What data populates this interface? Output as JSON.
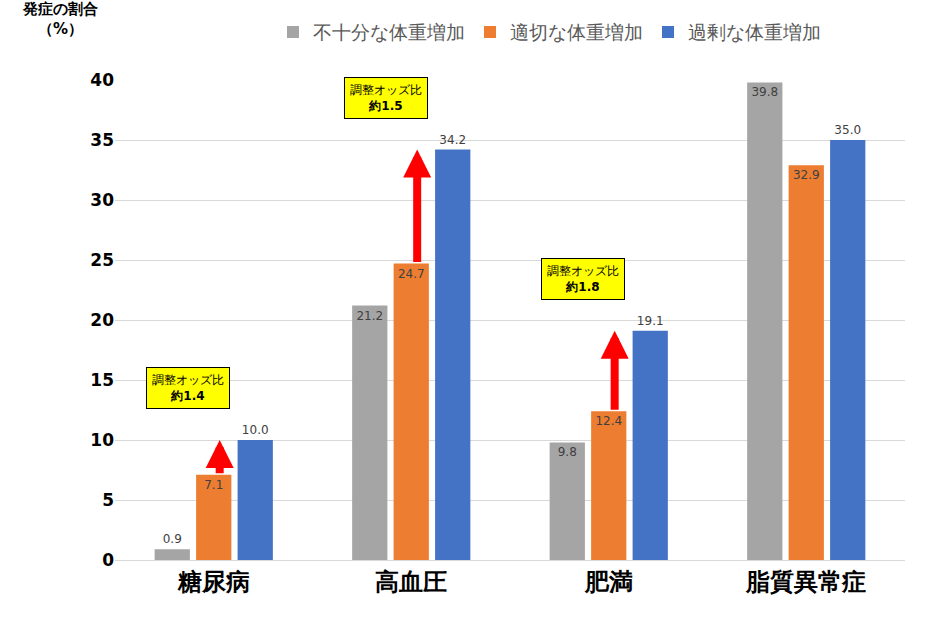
{
  "chart_data": {
    "type": "bar",
    "ylabel": "発症の割合\n（%）",
    "categories": [
      "糖尿病",
      "高血圧",
      "肥満",
      "脂質異常症"
    ],
    "series": [
      {
        "name": "不十分な体重増加",
        "color": "#a5a5a5",
        "values": [
          0.9,
          21.2,
          9.8,
          39.8
        ],
        "value_labels": [
          "0.9",
          "21.2",
          "9.8",
          "39.8"
        ]
      },
      {
        "name": "適切な体重増加",
        "color": "#ed7d31",
        "values": [
          7.1,
          24.7,
          12.4,
          32.9
        ],
        "value_labels": [
          "7.1",
          "24.7",
          "12.4",
          "32.9"
        ]
      },
      {
        "name": "過剰な体重増加",
        "color": "#4472c4",
        "values": [
          10.0,
          34.2,
          19.1,
          35.0
        ],
        "value_labels": [
          "10.0",
          "34.2",
          "19.1",
          "35.0"
        ]
      }
    ],
    "ylim": [
      0,
      40
    ],
    "yticks": [
      0,
      5,
      10,
      15,
      20,
      25,
      30,
      35,
      40
    ],
    "grid": true,
    "legend": "top",
    "data_labels": true,
    "annotations": [
      {
        "category": "糖尿病",
        "text": "調整オッズ比\n約1.4"
      },
      {
        "category": "高血圧",
        "text": "調整オッズ比\n約1.5"
      },
      {
        "category": "肥満",
        "text": "調整オッズ比\n約1.8"
      }
    ]
  }
}
